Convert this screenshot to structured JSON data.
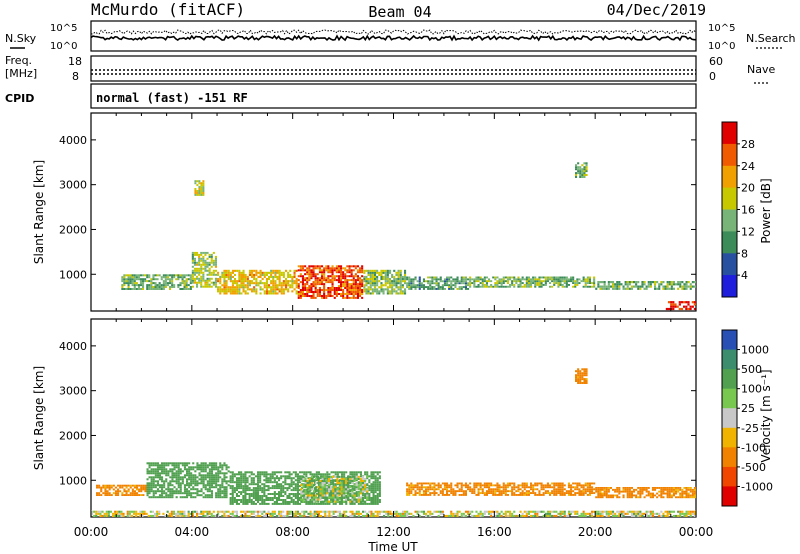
{
  "header": {
    "station": "McMurdo (fitACF)",
    "beam": "Beam 04",
    "date": "04/Dec/2019"
  },
  "top_panels": {
    "nsky_label": "N.Sky",
    "nsearch_label": "N.Search",
    "nsky_ticks": [
      "10^5",
      "10^0"
    ],
    "nsearch_ticks": [
      "10^5",
      "10^0"
    ],
    "freq_label_line1": "Freq.",
    "freq_label_line2": "[MHz]",
    "freq_ticks": [
      "18",
      "8"
    ],
    "nave_label": "Nave",
    "nave_ticks": [
      "60",
      "0"
    ],
    "cpid_label": "CPID",
    "cpid_text": "normal (fast) -151 RF"
  },
  "chart_data": [
    {
      "type": "heatmap",
      "name": "power",
      "xlabel": "Time UT",
      "ylabel": "Slant Range [km]",
      "xlim": [
        0,
        24
      ],
      "ylim": [
        180,
        4600
      ],
      "x_ticks": [
        "00:00",
        "04:00",
        "08:00",
        "12:00",
        "16:00",
        "20:00",
        "00:00"
      ],
      "y_ticks": [
        1000,
        2000,
        3000,
        4000
      ],
      "colorbar_label": "Power [dB]",
      "colorbar_ticks": [
        "28",
        "24",
        "20",
        "16",
        "12",
        "8",
        "4"
      ],
      "colorbar_colors": [
        "#e00000",
        "#f05a00",
        "#f0a000",
        "#c8c800",
        "#78b478",
        "#3c8c5a",
        "#2850a0",
        "#1e1edc"
      ],
      "colorbar_bounds": [
        0,
        4,
        8,
        12,
        16,
        20,
        24,
        28,
        32
      ],
      "regions": [
        {
          "t0": 1.2,
          "t1": 4.0,
          "r0": 650,
          "r1": 1000,
          "value": 13
        },
        {
          "t0": 4.0,
          "t1": 5.0,
          "r0": 700,
          "r1": 1500,
          "value": 16
        },
        {
          "t0": 5.0,
          "t1": 8.2,
          "r0": 550,
          "r1": 1100,
          "value": 20
        },
        {
          "t0": 8.2,
          "t1": 10.8,
          "r0": 450,
          "r1": 1200,
          "value": 27
        },
        {
          "t0": 10.8,
          "t1": 12.5,
          "r0": 550,
          "r1": 1100,
          "value": 15
        },
        {
          "t0": 12.5,
          "t1": 15.0,
          "r0": 650,
          "r1": 950,
          "value": 12
        },
        {
          "t0": 15.0,
          "t1": 20.0,
          "r0": 700,
          "r1": 950,
          "value": 14
        },
        {
          "t0": 20.0,
          "t1": 24.0,
          "r0": 650,
          "r1": 850,
          "value": 13
        },
        {
          "t0": 22.8,
          "t1": 24.0,
          "r0": 200,
          "r1": 400,
          "value": 29
        },
        {
          "t0": 19.2,
          "t1": 19.7,
          "r0": 3150,
          "r1": 3500,
          "value": 14
        },
        {
          "t0": 4.1,
          "t1": 4.5,
          "r0": 2750,
          "r1": 3100,
          "value": 17
        }
      ]
    },
    {
      "type": "heatmap",
      "name": "velocity",
      "xlabel": "Time UT",
      "ylabel": "Slant Range [km]",
      "xlim": [
        0,
        24
      ],
      "ylim": [
        180,
        4600
      ],
      "x_ticks": [
        "00:00",
        "04:00",
        "08:00",
        "12:00",
        "16:00",
        "20:00",
        "00:00"
      ],
      "y_ticks": [
        1000,
        2000,
        3000,
        4000
      ],
      "colorbar_label": "Velocity [m s⁻¹]",
      "colorbar_ticks": [
        "1000",
        "500",
        "100",
        "25",
        "-25",
        "-100",
        "-500",
        "-1000"
      ],
      "colorbar_colors": [
        "#2850b4",
        "#3c8c6e",
        "#50a050",
        "#78c850",
        "#c8c8c8",
        "#f0b400",
        "#f08200",
        "#f04600",
        "#e00000"
      ],
      "regions": [
        {
          "t0": 0.2,
          "t1": 2.2,
          "r0": 650,
          "r1": 900,
          "value": -200
        },
        {
          "t0": 2.2,
          "t1": 5.5,
          "r0": 600,
          "r1": 1400,
          "value": 250
        },
        {
          "t0": 5.5,
          "t1": 11.5,
          "r0": 450,
          "r1": 1200,
          "value": 300
        },
        {
          "t0": 8.3,
          "t1": 11.0,
          "r0": 500,
          "r1": 1100,
          "value": 60
        },
        {
          "t0": 12.5,
          "t1": 20.0,
          "r0": 650,
          "r1": 950,
          "value": -200
        },
        {
          "t0": 20.0,
          "t1": 24.0,
          "r0": 600,
          "r1": 850,
          "value": -200
        },
        {
          "t0": 19.2,
          "t1": 19.7,
          "r0": 3150,
          "r1": 3500,
          "value": -200
        },
        {
          "t0": 0.0,
          "t1": 24.0,
          "r0": 180,
          "r1": 320,
          "value": 0
        }
      ]
    }
  ]
}
